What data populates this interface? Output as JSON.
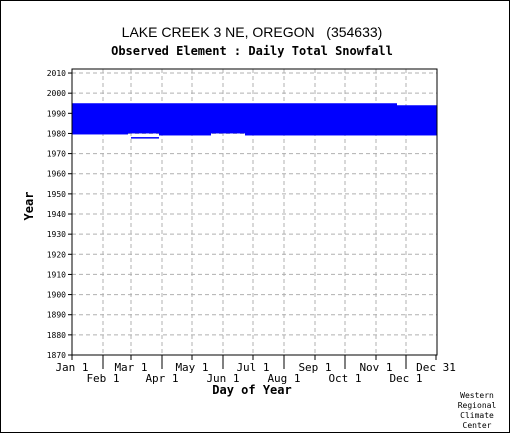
{
  "chart_data": {
    "type": "heatmap",
    "title": "LAKE CREEK 3 NE, OREGON   (354633)",
    "subtitle": "Observed Element : Daily Total Snowfall",
    "xlabel": "Day of Year",
    "ylabel": "Year",
    "xlim": [
      1,
      366
    ],
    "ylim": [
      1870,
      2012
    ],
    "y_ticks": [
      1870,
      1880,
      1890,
      1900,
      1910,
      1920,
      1930,
      1940,
      1950,
      1960,
      1970,
      1980,
      1990,
      2000,
      2010
    ],
    "x_ticks": [
      {
        "label": "Jan 1",
        "day": 1,
        "row": "upper"
      },
      {
        "label": "Feb 1",
        "day": 32,
        "row": "lower"
      },
      {
        "label": "Mar 1",
        "day": 60,
        "row": "upper"
      },
      {
        "label": "Apr 1",
        "day": 91,
        "row": "lower"
      },
      {
        "label": "May 1",
        "day": 121,
        "row": "upper"
      },
      {
        "label": "Jun 1",
        "day": 152,
        "row": "lower"
      },
      {
        "label": "Jul 1",
        "day": 182,
        "row": "upper"
      },
      {
        "label": "Aug 1",
        "day": 213,
        "row": "lower"
      },
      {
        "label": "Sep 1",
        "day": 244,
        "row": "upper"
      },
      {
        "label": "Oct 1",
        "day": 274,
        "row": "lower"
      },
      {
        "label": "Nov 1",
        "day": 305,
        "row": "upper"
      },
      {
        "label": "Dec 1",
        "day": 335,
        "row": "lower"
      },
      {
        "label": "Dec 31",
        "day": 365,
        "row": "upper"
      }
    ],
    "grid": true,
    "series_color": "#0000ff",
    "segments": [
      {
        "day_start": 1,
        "day_end": 57,
        "year_start": 1979.5,
        "year_end": 1995.0
      },
      {
        "day_start": 57,
        "day_end": 88,
        "year_start": 1980.0,
        "year_end": 1995.0
      },
      {
        "day_start": 88,
        "day_end": 140,
        "year_start": 1979.0,
        "year_end": 1995.0
      },
      {
        "day_start": 140,
        "day_end": 174,
        "year_start": 1980.0,
        "year_end": 1995.0
      },
      {
        "day_start": 174,
        "day_end": 326,
        "year_start": 1979.0,
        "year_end": 1995.0
      },
      {
        "day_start": 326,
        "day_end": 366,
        "year_start": 1979.0,
        "year_end": 1994.0
      },
      {
        "day_start": 60,
        "day_end": 88,
        "year_start": 1977.5,
        "year_end": 1978.2
      }
    ],
    "credit": [
      "Western",
      "Regional",
      "Climate",
      "Center"
    ]
  }
}
